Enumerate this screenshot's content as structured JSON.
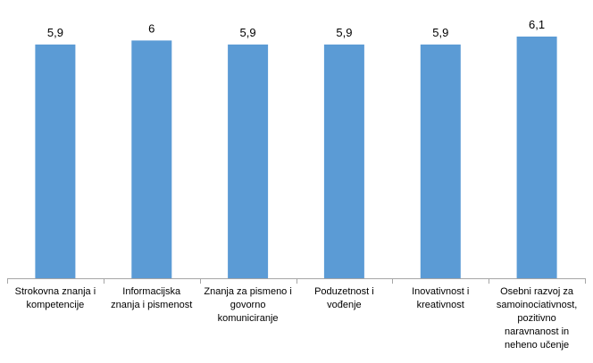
{
  "chart_data": {
    "type": "bar",
    "categories": [
      "Strokovna znanja i kompetencije",
      "Informacijska znanja i pismenost",
      "Znanja za pismeno i govorno komuniciranje",
      "Poduzetnost i vođenje",
      "Inovativnost i kreativnost",
      "Osebni razvoj za samoinociativnost, pozitivno naravnanost in neheno učenje"
    ],
    "values": [
      5.9,
      6,
      5.9,
      5.9,
      5.9,
      6.1
    ],
    "data_labels": [
      "5,9",
      "6",
      "5,9",
      "5,9",
      "5,9",
      "6,1"
    ],
    "title": "",
    "xlabel": "",
    "ylabel": "",
    "ylim": [
      0,
      6.1
    ],
    "grid": false,
    "legend": "none",
    "bar_color": "#5B9BD5",
    "axis_color": "#A6A6A6"
  }
}
